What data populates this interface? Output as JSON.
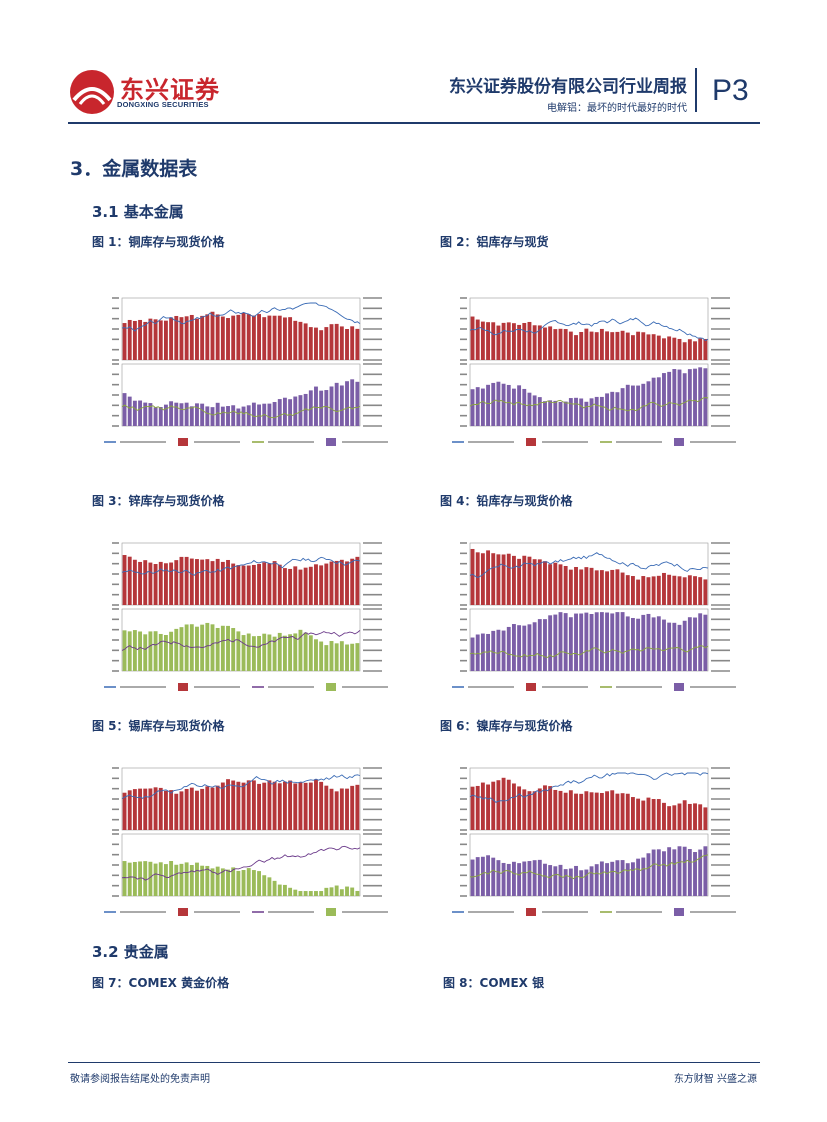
{
  "header": {
    "logo_cn": "东兴证券",
    "logo_en": "DONGXING SECURITIES",
    "title": "东兴证券股份有限公司行业周报",
    "subtitle": "电解铝：最坏的时代最好的时代",
    "page": "P3"
  },
  "section": {
    "title": "3．金属数据表",
    "sub1": "3.1  基本金属",
    "sub2": "3.2  贵金属"
  },
  "figures": [
    {
      "caption": "图 1：铜库存与现货价格"
    },
    {
      "caption": "图 2：铝库存与现货"
    },
    {
      "caption": "图 3：锌库存与现货价格"
    },
    {
      "caption": "图 4：铅库存与现货价格"
    },
    {
      "caption": "图 5：锡库存与现货价格"
    },
    {
      "caption": "图 6：镍库存与现货价格"
    },
    {
      "caption": "图 7：COMEX 黄金价格"
    },
    {
      "caption": "图 8：COMEX 银"
    }
  ],
  "colors": {
    "navy": "#1f3a6b",
    "bar_red": "#b5363a",
    "bar_purple": "#7b5ea7",
    "bar_green": "#9bbb59",
    "line_blue": "#3a6bb5",
    "line_green": "#8aa63c",
    "line_purple": "#6b3a8a"
  },
  "footer": {
    "left": "敬请参阅报告结尾处的免责声明",
    "right": "东方财智 兴盛之源"
  }
}
